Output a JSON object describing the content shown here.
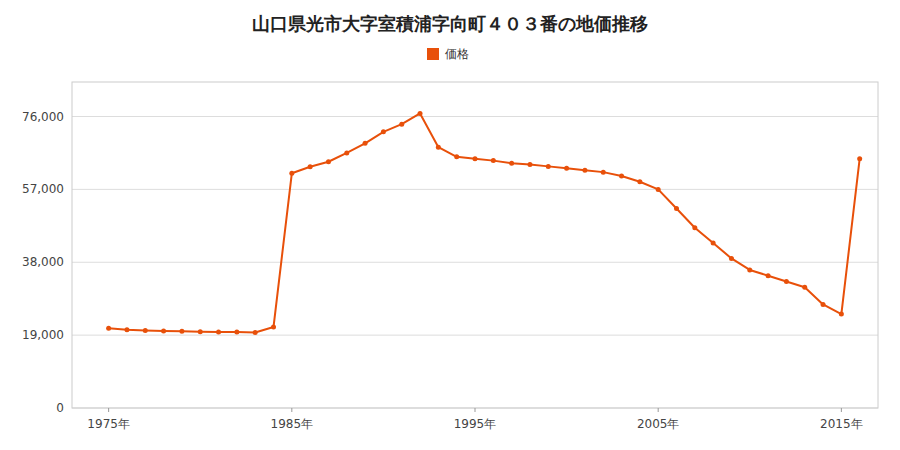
{
  "chart_data": {
    "type": "line",
    "title": "山口県光市大字室積浦字向町４０３番の地価推移",
    "x": [
      1975,
      1976,
      1977,
      1978,
      1979,
      1980,
      1981,
      1982,
      1983,
      1984,
      1985,
      1986,
      1987,
      1988,
      1989,
      1990,
      1991,
      1992,
      1993,
      1994,
      1995,
      1996,
      1997,
      1998,
      1999,
      2000,
      2001,
      2002,
      2003,
      2004,
      2005,
      2006,
      2007,
      2008,
      2009,
      2010,
      2011,
      2012,
      2013,
      2014,
      2015,
      2016
    ],
    "series": [
      {
        "name": "価格",
        "color": "#E8500A",
        "marker": "circle",
        "values": [
          20800,
          20400,
          20200,
          20100,
          20000,
          19900,
          19800,
          19800,
          19700,
          21100,
          61200,
          62900,
          64200,
          66500,
          69000,
          72000,
          74000,
          76800,
          68000,
          65500,
          65000,
          64500,
          63800,
          63500,
          63000,
          62500,
          62000,
          61500,
          60500,
          59000,
          57000,
          52000,
          47000,
          43000,
          39000,
          36000,
          34500,
          33000,
          31500,
          27000,
          24500,
          65000
        ]
      }
    ],
    "xlim": [
      1973,
      2017
    ],
    "xticks": [
      {
        "value": 1975,
        "label": "1975年"
      },
      {
        "value": 1985,
        "label": "1985年"
      },
      {
        "value": 1995,
        "label": "1995年"
      },
      {
        "value": 2005,
        "label": "2005年"
      },
      {
        "value": 2015,
        "label": "2015年"
      }
    ],
    "ylim": [
      0,
      85000
    ],
    "yticks": [
      0,
      {
        "value": 19000,
        "label": "19,000"
      },
      {
        "value": 38000,
        "label": "38,000"
      },
      {
        "value": 57000,
        "label": "57,000"
      },
      {
        "value": 76000,
        "label": "76,000"
      }
    ],
    "grid": true,
    "legend": "top"
  }
}
